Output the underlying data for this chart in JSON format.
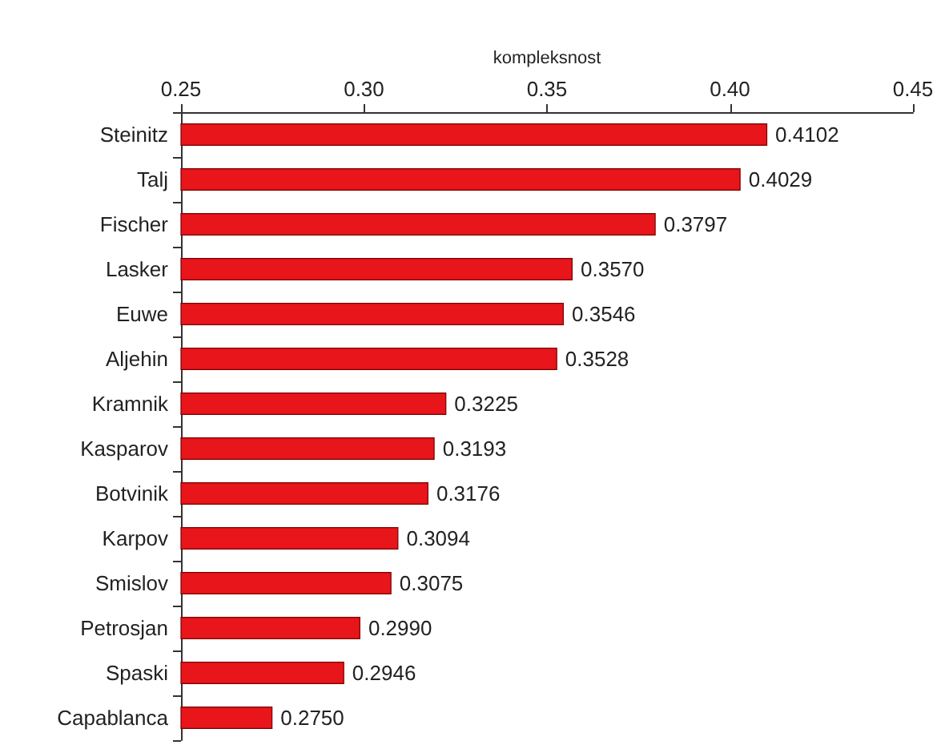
{
  "chart_data": {
    "type": "bar",
    "orientation": "horizontal",
    "xlabel": "kompleksnost",
    "categories": [
      "Steinitz",
      "Talj",
      "Fischer",
      "Lasker",
      "Euwe",
      "Aljehin",
      "Kramnik",
      "Kasparov",
      "Botvinik",
      "Karpov",
      "Smislov",
      "Petrosjan",
      "Spaski",
      "Capablanca"
    ],
    "values": [
      0.4102,
      0.4029,
      0.3797,
      0.357,
      0.3546,
      0.3528,
      0.3225,
      0.3193,
      0.3176,
      0.3094,
      0.3075,
      0.299,
      0.2946,
      0.275
    ],
    "value_labels": [
      "0.4102",
      "0.4029",
      "0.3797",
      "0.3570",
      "0.3546",
      "0.3528",
      "0.3225",
      "0.3193",
      "0.3176",
      "0.3094",
      "0.3075",
      "0.2990",
      "0.2946",
      "0.2750"
    ],
    "color": "#e8151b",
    "xlim": [
      0.25,
      0.45
    ],
    "xticks": [
      {
        "value": 0.25,
        "label": "0.25"
      },
      {
        "value": 0.3,
        "label": "0.30"
      },
      {
        "value": 0.35,
        "label": "0.35"
      },
      {
        "value": 0.4,
        "label": "0.40"
      },
      {
        "value": 0.45,
        "label": "0.45"
      }
    ],
    "grid": false
  }
}
